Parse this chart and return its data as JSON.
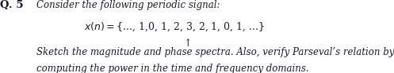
{
  "bg_color": "#ffffff",
  "text_color": "#1a1a2e",
  "label_q": "Q. 5",
  "line1": "Consider the following periodic signal:",
  "formula": "x(n) = {..., 1,0, 1, 2, 3, 2, 1, 0, 1, ...}",
  "arrow": "↑",
  "line3": "Sketch the magnitude and phase spectra. Also, verify Parseval’s relation by",
  "line4": "computing the power in the time and frequency domains.",
  "font_size": 8.5,
  "font_size_bold": 9.5,
  "font_size_formula": 9.0,
  "fig_width": 4.57,
  "fig_height": 0.96
}
